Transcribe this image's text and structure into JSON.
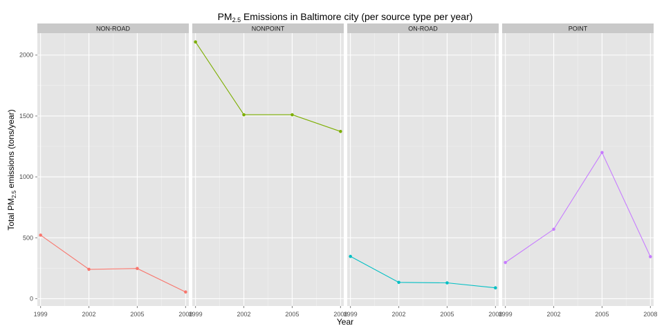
{
  "chart_data": {
    "type": "line",
    "title": {
      "main": "PM",
      "sub": "2.5",
      "rest": " Emissions in Baltimore city (per source type per year)"
    },
    "xlabel": "Year",
    "ylabel": {
      "pre": "Total PM",
      "sub": "2.5",
      "post": " emissions (tons/year)"
    },
    "x": [
      1999,
      2002,
      2005,
      2008
    ],
    "xlim": [
      1998.8,
      2008.2
    ],
    "ylim": [
      -60,
      2180
    ],
    "yticks": [
      0,
      500,
      1000,
      1500,
      2000
    ],
    "grid": true,
    "legend": "none",
    "panels": [
      {
        "name": "NON-ROAD",
        "color": "#F8766D",
        "values": [
          522,
          241,
          248,
          55
        ]
      },
      {
        "name": "NONPOINT",
        "color": "#7CAE00",
        "values": [
          2108,
          1510,
          1510,
          1373
        ]
      },
      {
        "name": "ON-ROAD",
        "color": "#00BFC4",
        "values": [
          347,
          134,
          130,
          89
        ]
      },
      {
        "name": "POINT",
        "color": "#C77CFF",
        "values": [
          297,
          570,
          1200,
          345
        ]
      }
    ]
  }
}
